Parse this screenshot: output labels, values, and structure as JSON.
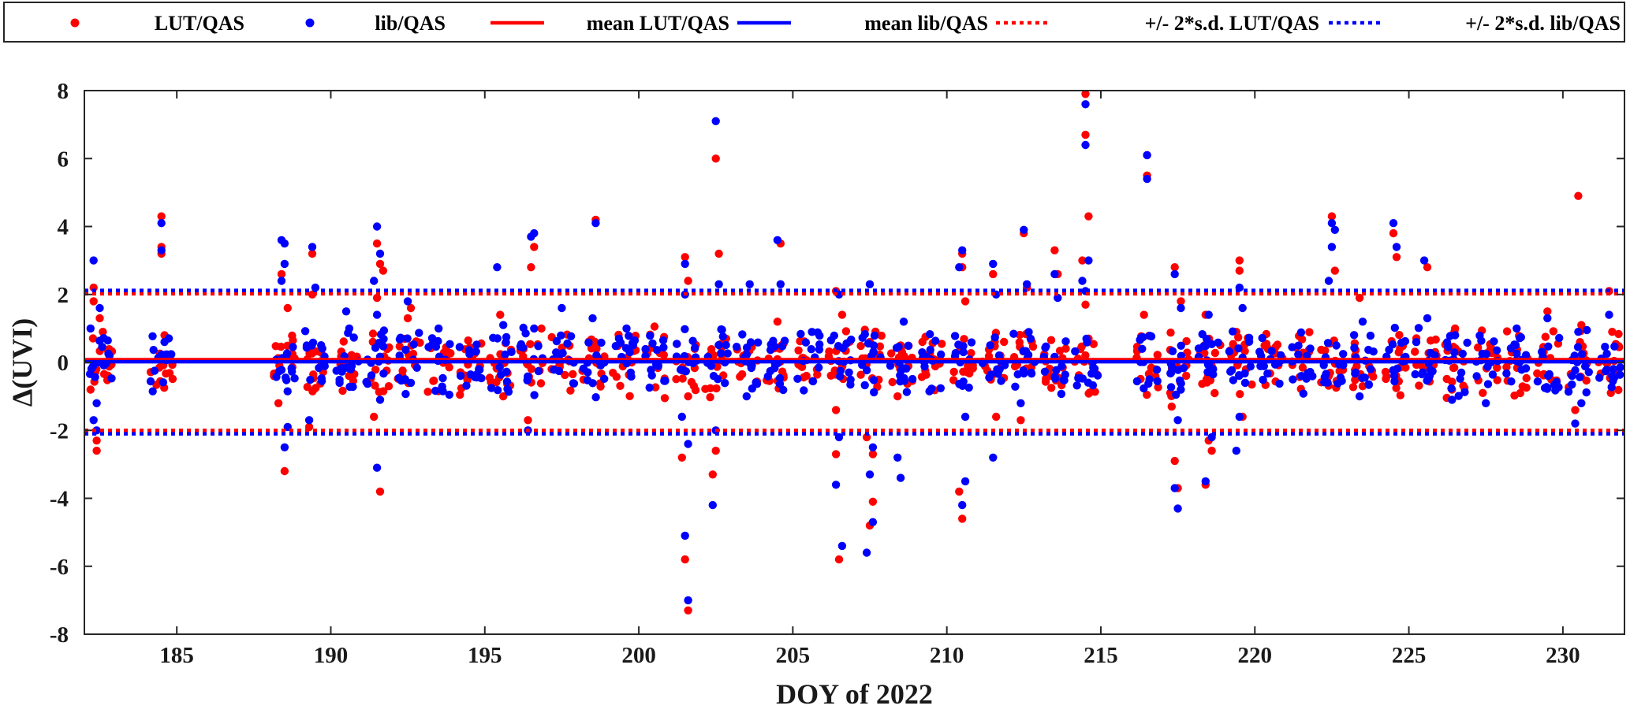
{
  "chart_data": {
    "type": "scatter",
    "title": "",
    "xlabel": "DOY of 2022",
    "ylabel": "Δ(UVI)",
    "xlim": [
      182,
      232
    ],
    "ylim": [
      -8,
      8
    ],
    "xticks": [
      185,
      190,
      195,
      200,
      205,
      210,
      215,
      220,
      225,
      230
    ],
    "yticks": [
      -8,
      -6,
      -4,
      -2,
      0,
      2,
      4,
      6,
      8
    ],
    "grid": false,
    "legend_position": "top (outside, horizontal)",
    "legend": [
      {
        "label": "LUT/QAS",
        "style": "marker",
        "color": "#ff0000"
      },
      {
        "label": "lib/QAS",
        "style": "marker",
        "color": "#0000ff"
      },
      {
        "label": "mean LUT/QAS",
        "style": "solid",
        "color": "#ff0000"
      },
      {
        "label": "mean lib/QAS",
        "style": "solid",
        "color": "#0000ff"
      },
      {
        "label": "+/- 2*s.d. LUT/QAS",
        "style": "dotted",
        "color": "#ff0000"
      },
      {
        "label": "+/- 2*s.d. lib/QAS",
        "style": "dotted",
        "color": "#0000ff"
      }
    ],
    "lines": {
      "mean_lut": 0.08,
      "mean_lib": 0.02,
      "sd2_lut": [
        2.02,
        -2.0
      ],
      "sd2_lib": [
        2.12,
        -2.1
      ]
    },
    "series": [
      {
        "name": "LUT/QAS",
        "color": "#ff0000",
        "points": [
          [
            182.3,
            2.2
          ],
          [
            182.3,
            1.8
          ],
          [
            182.4,
            -2.3
          ],
          [
            182.4,
            -2.6
          ],
          [
            182.5,
            1.3
          ],
          [
            182.2,
            -0.8
          ],
          [
            182.6,
            0.9
          ],
          [
            184.5,
            4.3
          ],
          [
            184.5,
            3.4
          ],
          [
            184.5,
            3.2
          ],
          [
            184.6,
            0.8
          ],
          [
            188.4,
            2.6
          ],
          [
            188.5,
            -3.2
          ],
          [
            188.3,
            -1.2
          ],
          [
            188.6,
            1.6
          ],
          [
            189.4,
            3.2
          ],
          [
            189.4,
            2.0
          ],
          [
            189.3,
            -1.9
          ],
          [
            191.5,
            3.5
          ],
          [
            191.6,
            2.9
          ],
          [
            191.6,
            -3.8
          ],
          [
            191.4,
            -1.6
          ],
          [
            191.7,
            2.7
          ],
          [
            191.5,
            1.9
          ],
          [
            192.5,
            1.3
          ],
          [
            192.6,
            1.6
          ],
          [
            195.5,
            1.4
          ],
          [
            195.6,
            -1.0
          ],
          [
            196.5,
            2.8
          ],
          [
            196.6,
            3.4
          ],
          [
            196.4,
            -1.7
          ],
          [
            198.6,
            4.2
          ],
          [
            201.5,
            3.1
          ],
          [
            201.6,
            2.4
          ],
          [
            201.5,
            -5.8
          ],
          [
            201.6,
            -7.3
          ],
          [
            201.4,
            -2.8
          ],
          [
            201.6,
            -1.0
          ],
          [
            202.5,
            6.0
          ],
          [
            202.6,
            3.2
          ],
          [
            202.4,
            -3.3
          ],
          [
            202.5,
            -2.6
          ],
          [
            204.6,
            3.5
          ],
          [
            204.5,
            1.2
          ],
          [
            206.4,
            2.1
          ],
          [
            206.5,
            -5.8
          ],
          [
            206.4,
            -2.7
          ],
          [
            206.6,
            1.4
          ],
          [
            206.4,
            -1.4
          ],
          [
            207.5,
            0.6
          ],
          [
            207.6,
            -4.1
          ],
          [
            207.5,
            -4.8
          ],
          [
            207.4,
            -2.2
          ],
          [
            207.6,
            -2.7
          ],
          [
            208.5,
            0.5
          ],
          [
            208.4,
            -1.0
          ],
          [
            210.5,
            3.2
          ],
          [
            210.5,
            -4.6
          ],
          [
            210.4,
            -3.8
          ],
          [
            210.6,
            1.8
          ],
          [
            210.5,
            2.8
          ],
          [
            211.5,
            2.6
          ],
          [
            211.6,
            -1.6
          ],
          [
            212.5,
            3.8
          ],
          [
            212.4,
            -1.7
          ],
          [
            212.6,
            2.2
          ],
          [
            213.5,
            3.3
          ],
          [
            213.6,
            2.6
          ],
          [
            213.4,
            -0.4
          ],
          [
            214.5,
            7.9
          ],
          [
            214.5,
            6.7
          ],
          [
            214.6,
            4.3
          ],
          [
            214.4,
            3.0
          ],
          [
            214.5,
            1.7
          ],
          [
            214.6,
            0.7
          ],
          [
            216.5,
            6.1
          ],
          [
            216.5,
            5.5
          ],
          [
            216.4,
            1.4
          ],
          [
            217.4,
            2.8
          ],
          [
            217.4,
            -2.9
          ],
          [
            217.5,
            -3.7
          ],
          [
            217.3,
            -1.3
          ],
          [
            217.6,
            1.8
          ],
          [
            218.4,
            -3.6
          ],
          [
            218.5,
            -2.3
          ],
          [
            218.6,
            -2.6
          ],
          [
            218.4,
            1.4
          ],
          [
            219.5,
            3.0
          ],
          [
            219.4,
            0.9
          ],
          [
            219.6,
            -1.6
          ],
          [
            219.5,
            2.7
          ],
          [
            222.5,
            4.3
          ],
          [
            222.6,
            2.7
          ],
          [
            222.4,
            -0.4
          ],
          [
            223.4,
            1.9
          ],
          [
            223.5,
            -0.7
          ],
          [
            224.5,
            3.8
          ],
          [
            224.6,
            3.1
          ],
          [
            225.6,
            2.8
          ],
          [
            226.5,
            1.0
          ],
          [
            226.4,
            -0.8
          ],
          [
            227.4,
            -0.9
          ],
          [
            229.5,
            1.5
          ],
          [
            230.5,
            4.9
          ],
          [
            230.6,
            1.1
          ],
          [
            230.4,
            -1.4
          ],
          [
            231.5,
            2.1
          ],
          [
            231.6,
            0.9
          ]
        ]
      },
      {
        "name": "lib/QAS",
        "color": "#0000ff",
        "points": [
          [
            182.3,
            3.0
          ],
          [
            182.2,
            1.0
          ],
          [
            182.4,
            -2.0
          ],
          [
            182.4,
            -1.2
          ],
          [
            182.5,
            1.6
          ],
          [
            182.3,
            -1.7
          ],
          [
            184.5,
            4.1
          ],
          [
            184.5,
            3.3
          ],
          [
            184.6,
            0.6
          ],
          [
            188.4,
            3.6
          ],
          [
            188.5,
            3.5
          ],
          [
            188.4,
            2.4
          ],
          [
            188.5,
            -2.5
          ],
          [
            188.6,
            -1.9
          ],
          [
            188.5,
            2.9
          ],
          [
            189.4,
            3.4
          ],
          [
            189.5,
            2.2
          ],
          [
            189.3,
            -1.7
          ],
          [
            190.5,
            1.5
          ],
          [
            190.6,
            1.0
          ],
          [
            191.5,
            4.0
          ],
          [
            191.6,
            3.2
          ],
          [
            191.5,
            -3.1
          ],
          [
            191.4,
            2.4
          ],
          [
            191.6,
            -1.1
          ],
          [
            191.5,
            1.4
          ],
          [
            192.5,
            1.8
          ],
          [
            192.6,
            -0.6
          ],
          [
            193.5,
            1.0
          ],
          [
            195.4,
            2.8
          ],
          [
            195.6,
            1.1
          ],
          [
            196.5,
            3.7
          ],
          [
            196.6,
            3.8
          ],
          [
            196.4,
            -2.0
          ],
          [
            196.6,
            1.0
          ],
          [
            197.5,
            1.6
          ],
          [
            198.6,
            4.1
          ],
          [
            198.5,
            1.3
          ],
          [
            199.6,
            1.0
          ],
          [
            201.5,
            2.9
          ],
          [
            201.5,
            -5.1
          ],
          [
            201.6,
            -7.0
          ],
          [
            201.4,
            -1.6
          ],
          [
            201.6,
            -2.4
          ],
          [
            201.5,
            2.0
          ],
          [
            202.5,
            7.1
          ],
          [
            202.6,
            2.3
          ],
          [
            202.4,
            -4.2
          ],
          [
            202.5,
            -2.0
          ],
          [
            203.6,
            2.3
          ],
          [
            203.5,
            -1.0
          ],
          [
            204.5,
            3.6
          ],
          [
            204.6,
            2.3
          ],
          [
            206.5,
            2.0
          ],
          [
            206.4,
            -3.6
          ],
          [
            206.6,
            -5.4
          ],
          [
            206.5,
            -2.2
          ],
          [
            207.5,
            2.3
          ],
          [
            207.4,
            -5.6
          ],
          [
            207.6,
            -4.7
          ],
          [
            207.5,
            -3.3
          ],
          [
            207.6,
            -2.5
          ],
          [
            208.5,
            -3.4
          ],
          [
            208.4,
            -2.8
          ],
          [
            208.6,
            1.2
          ],
          [
            210.5,
            3.3
          ],
          [
            210.6,
            -3.5
          ],
          [
            210.5,
            -4.2
          ],
          [
            210.4,
            2.8
          ],
          [
            210.6,
            -1.6
          ],
          [
            211.5,
            2.9
          ],
          [
            211.5,
            -2.8
          ],
          [
            211.6,
            2.0
          ],
          [
            212.5,
            3.9
          ],
          [
            212.6,
            2.3
          ],
          [
            212.4,
            -1.2
          ],
          [
            213.5,
            2.6
          ],
          [
            213.6,
            1.9
          ],
          [
            214.5,
            7.6
          ],
          [
            214.5,
            6.4
          ],
          [
            214.6,
            3.0
          ],
          [
            214.4,
            2.4
          ],
          [
            214.5,
            2.1
          ],
          [
            216.5,
            6.1
          ],
          [
            216.5,
            5.4
          ],
          [
            217.4,
            2.6
          ],
          [
            217.5,
            -4.3
          ],
          [
            217.4,
            -3.7
          ],
          [
            217.6,
            1.6
          ],
          [
            217.5,
            -1.7
          ],
          [
            218.4,
            -3.5
          ],
          [
            218.5,
            1.4
          ],
          [
            218.6,
            -2.2
          ],
          [
            219.5,
            2.2
          ],
          [
            219.4,
            -2.6
          ],
          [
            219.6,
            1.6
          ],
          [
            219.5,
            -1.6
          ],
          [
            222.5,
            4.1
          ],
          [
            222.6,
            3.9
          ],
          [
            222.5,
            3.4
          ],
          [
            222.4,
            2.4
          ],
          [
            223.5,
            1.2
          ],
          [
            223.4,
            -1.0
          ],
          [
            224.5,
            4.1
          ],
          [
            224.6,
            3.4
          ],
          [
            225.5,
            3.0
          ],
          [
            225.6,
            1.3
          ],
          [
            226.5,
            0.8
          ],
          [
            226.4,
            -1.1
          ],
          [
            227.5,
            -1.2
          ],
          [
            228.5,
            1.0
          ],
          [
            229.5,
            1.3
          ],
          [
            230.5,
            0.9
          ],
          [
            230.4,
            -1.8
          ],
          [
            230.6,
            -1.2
          ],
          [
            231.5,
            1.4
          ],
          [
            231.6,
            -0.4
          ]
        ]
      }
    ]
  }
}
